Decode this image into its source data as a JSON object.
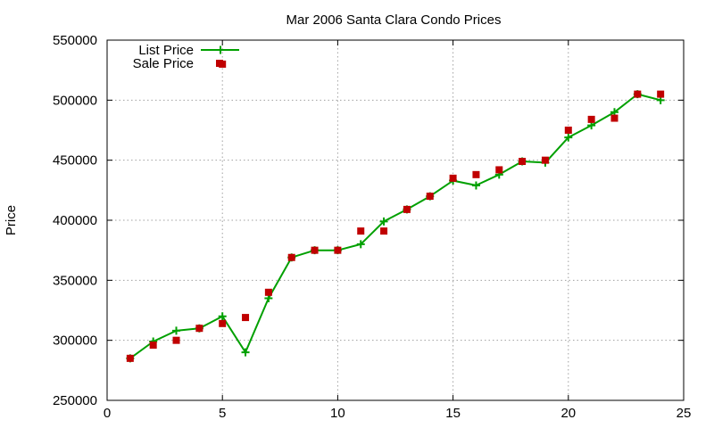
{
  "chart_data": {
    "type": "line",
    "title": "Mar 2006 Santa Clara Condo Prices",
    "xlabel": "",
    "ylabel": "Price",
    "xlim": [
      0,
      25
    ],
    "ylim": [
      250000,
      550000
    ],
    "x_ticks": [
      0,
      5,
      10,
      15,
      20,
      25
    ],
    "y_ticks": [
      250000,
      300000,
      350000,
      400000,
      450000,
      500000,
      550000
    ],
    "x_tick_labels": [
      "0",
      "5",
      "10",
      "15",
      "20",
      "25"
    ],
    "y_tick_labels": [
      "250000",
      "300000",
      "350000",
      "400000",
      "450000",
      "500000",
      "550000"
    ],
    "grid": true,
    "legend_position": "top-left",
    "series": [
      {
        "name": "List Price",
        "style": "line-with-plus-markers",
        "color": "#00a000",
        "x": [
          1,
          2,
          3,
          4,
          5,
          6,
          7,
          8,
          9,
          10,
          11,
          12,
          13,
          14,
          15,
          16,
          17,
          18,
          19,
          20,
          21,
          22,
          23,
          24
        ],
        "y": [
          285000,
          299000,
          308000,
          310000,
          320000,
          290000,
          335000,
          369000,
          375000,
          375000,
          380000,
          399000,
          409000,
          420000,
          433000,
          429000,
          438000,
          449000,
          448000,
          469000,
          479000,
          490000,
          505000,
          500000
        ]
      },
      {
        "name": "Sale Price",
        "style": "square-markers",
        "color": "#c00000",
        "x": [
          1,
          2,
          3,
          4,
          5,
          5,
          6,
          7,
          8,
          9,
          10,
          11,
          12,
          13,
          14,
          15,
          16,
          17,
          18,
          19,
          20,
          21,
          22,
          23,
          24
        ],
        "y": [
          285000,
          296000,
          300000,
          310000,
          314000,
          530000,
          319000,
          340000,
          369000,
          375000,
          375000,
          391000,
          391000,
          409000,
          420000,
          435000,
          438000,
          442000,
          449000,
          450000,
          475000,
          484000,
          485000,
          505000,
          505000
        ]
      }
    ]
  }
}
